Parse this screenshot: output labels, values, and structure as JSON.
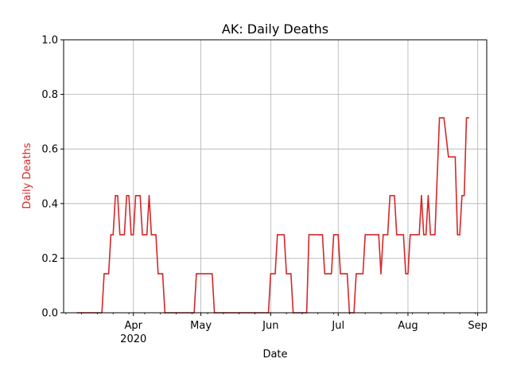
{
  "chart_data": {
    "type": "line",
    "title": "AK: Daily Deaths",
    "xlabel": "Date",
    "ylabel": "Daily Deaths",
    "ylabel_color": "#d62728",
    "line_color": "#d62728",
    "grid": true,
    "xlim": [
      "2020-03-01",
      "2020-09-05"
    ],
    "ylim": [
      0,
      1.0
    ],
    "y_ticks": [
      0.0,
      0.2,
      0.4,
      0.6,
      0.8,
      1.0
    ],
    "y_tick_labels": [
      "0.0",
      "0.2",
      "0.4",
      "0.6",
      "0.8",
      "1.0"
    ],
    "x_ticks": [
      {
        "date": "2020-04-01",
        "label": "Apr",
        "sublabel": "2020"
      },
      {
        "date": "2020-05-01",
        "label": "May",
        "sublabel": ""
      },
      {
        "date": "2020-06-01",
        "label": "Jun",
        "sublabel": ""
      },
      {
        "date": "2020-07-01",
        "label": "Jul",
        "sublabel": ""
      },
      {
        "date": "2020-08-01",
        "label": "Aug",
        "sublabel": ""
      },
      {
        "date": "2020-09-01",
        "label": "Sep",
        "sublabel": ""
      }
    ],
    "series": [
      {
        "points": [
          [
            "2020-03-07",
            0.0
          ],
          [
            "2020-03-18",
            0.0
          ],
          [
            "2020-03-19",
            0.143
          ],
          [
            "2020-03-21",
            0.143
          ],
          [
            "2020-03-22",
            0.286
          ],
          [
            "2020-03-23",
            0.286
          ],
          [
            "2020-03-24",
            0.429
          ],
          [
            "2020-03-25",
            0.429
          ],
          [
            "2020-03-26",
            0.286
          ],
          [
            "2020-03-28",
            0.286
          ],
          [
            "2020-03-29",
            0.429
          ],
          [
            "2020-03-30",
            0.429
          ],
          [
            "2020-03-31",
            0.286
          ],
          [
            "2020-04-01",
            0.286
          ],
          [
            "2020-04-02",
            0.429
          ],
          [
            "2020-04-04",
            0.429
          ],
          [
            "2020-04-05",
            0.286
          ],
          [
            "2020-04-07",
            0.286
          ],
          [
            "2020-04-08",
            0.429
          ],
          [
            "2020-04-09",
            0.286
          ],
          [
            "2020-04-11",
            0.286
          ],
          [
            "2020-04-12",
            0.143
          ],
          [
            "2020-04-14",
            0.143
          ],
          [
            "2020-04-15",
            0.0
          ],
          [
            "2020-04-28",
            0.0
          ],
          [
            "2020-04-29",
            0.143
          ],
          [
            "2020-05-06",
            0.143
          ],
          [
            "2020-05-07",
            0.0
          ],
          [
            "2020-05-31",
            0.0
          ],
          [
            "2020-06-01",
            0.143
          ],
          [
            "2020-06-03",
            0.143
          ],
          [
            "2020-06-04",
            0.286
          ],
          [
            "2020-06-07",
            0.286
          ],
          [
            "2020-06-08",
            0.143
          ],
          [
            "2020-06-10",
            0.143
          ],
          [
            "2020-06-11",
            0.0
          ],
          [
            "2020-06-17",
            0.0
          ],
          [
            "2020-06-18",
            0.286
          ],
          [
            "2020-06-24",
            0.286
          ],
          [
            "2020-06-25",
            0.143
          ],
          [
            "2020-06-28",
            0.143
          ],
          [
            "2020-06-29",
            0.286
          ],
          [
            "2020-07-01",
            0.286
          ],
          [
            "2020-07-02",
            0.143
          ],
          [
            "2020-07-05",
            0.143
          ],
          [
            "2020-07-06",
            0.0
          ],
          [
            "2020-07-08",
            0.0
          ],
          [
            "2020-07-09",
            0.143
          ],
          [
            "2020-07-12",
            0.143
          ],
          [
            "2020-07-13",
            0.286
          ],
          [
            "2020-07-19",
            0.286
          ],
          [
            "2020-07-20",
            0.143
          ],
          [
            "2020-07-21",
            0.286
          ],
          [
            "2020-07-23",
            0.286
          ],
          [
            "2020-07-24",
            0.429
          ],
          [
            "2020-07-26",
            0.429
          ],
          [
            "2020-07-27",
            0.286
          ],
          [
            "2020-07-30",
            0.286
          ],
          [
            "2020-07-31",
            0.143
          ],
          [
            "2020-08-01",
            0.143
          ],
          [
            "2020-08-02",
            0.286
          ],
          [
            "2020-08-06",
            0.286
          ],
          [
            "2020-08-07",
            0.429
          ],
          [
            "2020-08-08",
            0.286
          ],
          [
            "2020-08-09",
            0.286
          ],
          [
            "2020-08-10",
            0.429
          ],
          [
            "2020-08-11",
            0.286
          ],
          [
            "2020-08-13",
            0.286
          ],
          [
            "2020-08-15",
            0.714
          ],
          [
            "2020-08-17",
            0.714
          ],
          [
            "2020-08-19",
            0.571
          ],
          [
            "2020-08-22",
            0.571
          ],
          [
            "2020-08-23",
            0.286
          ],
          [
            "2020-08-24",
            0.286
          ],
          [
            "2020-08-25",
            0.429
          ],
          [
            "2020-08-26",
            0.429
          ],
          [
            "2020-08-27",
            0.714
          ],
          [
            "2020-08-28",
            0.714
          ]
        ]
      }
    ]
  }
}
